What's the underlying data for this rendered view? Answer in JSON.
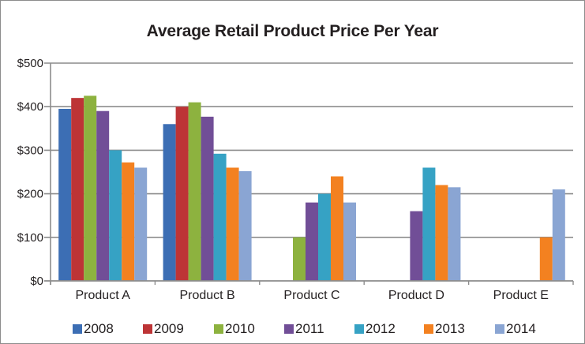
{
  "chart_data": {
    "type": "bar",
    "title": "Average Retail Product Price Per Year",
    "xlabel": "",
    "ylabel": "",
    "ylim": [
      0,
      500
    ],
    "yticks": [
      "$0",
      "$100",
      "$200",
      "$300",
      "$400",
      "$500"
    ],
    "ytick_values": [
      0,
      100,
      200,
      300,
      400,
      500
    ],
    "grid": true,
    "legend_position": "bottom",
    "categories": [
      "Product A",
      "Product B",
      "Product C",
      "Product D",
      "Product E"
    ],
    "series": [
      {
        "name": "2008",
        "color": "#3c6eb4",
        "values": [
          395,
          360,
          0,
          0,
          0
        ]
      },
      {
        "name": "2009",
        "color": "#bd3436",
        "values": [
          420,
          400,
          0,
          0,
          0
        ]
      },
      {
        "name": "2010",
        "color": "#8db23f",
        "values": [
          425,
          410,
          100,
          0,
          0
        ]
      },
      {
        "name": "2011",
        "color": "#714e97",
        "values": [
          390,
          377,
          180,
          160,
          0
        ]
      },
      {
        "name": "2012",
        "color": "#36a2c4",
        "values": [
          300,
          292,
          200,
          260,
          0
        ]
      },
      {
        "name": "2013",
        "color": "#f38120",
        "values": [
          272,
          260,
          240,
          220,
          100
        ]
      },
      {
        "name": "2014",
        "color": "#8aa5d3",
        "values": [
          260,
          252,
          180,
          215,
          210
        ]
      }
    ]
  }
}
